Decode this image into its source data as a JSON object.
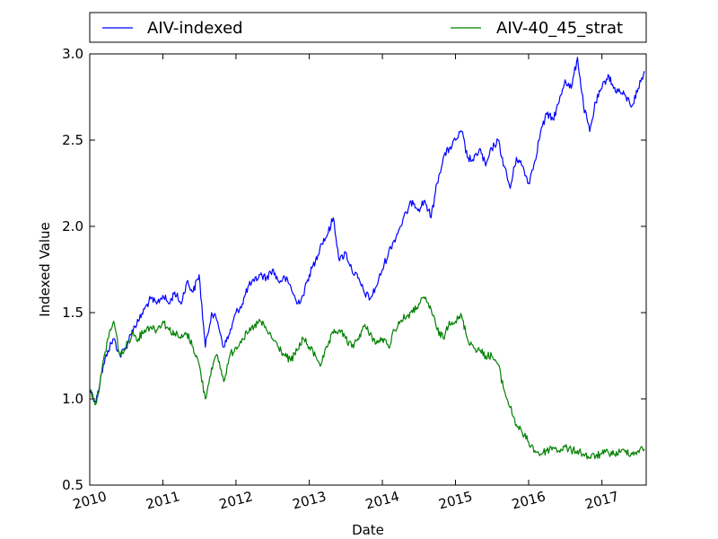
{
  "chart_data": {
    "type": "line",
    "title": "",
    "xlabel": "Date",
    "ylabel": "Indexed Value",
    "xlim": [
      "2010-01-01",
      "2017-08-10"
    ],
    "ylim": [
      0.5,
      3.0
    ],
    "yticks": [
      "0.5",
      "1.0",
      "1.5",
      "2.0",
      "2.5",
      "3.0"
    ],
    "xticks": [
      "2010",
      "2011",
      "2012",
      "2013",
      "2014",
      "2015",
      "2016",
      "2017"
    ],
    "grid": false,
    "legend": "top",
    "series": [
      {
        "name": "AIV-indexed",
        "color": "#0000ff",
        "points": [
          [
            "2010-01-04",
            1.05
          ],
          [
            "2010-02-01",
            0.98
          ],
          [
            "2010-03-01",
            1.15
          ],
          [
            "2010-04-01",
            1.28
          ],
          [
            "2010-05-01",
            1.35
          ],
          [
            "2010-06-01",
            1.25
          ],
          [
            "2010-07-01",
            1.3
          ],
          [
            "2010-08-01",
            1.4
          ],
          [
            "2010-09-01",
            1.45
          ],
          [
            "2010-10-01",
            1.52
          ],
          [
            "2010-11-01",
            1.58
          ],
          [
            "2010-12-01",
            1.55
          ],
          [
            "2011-01-01",
            1.6
          ],
          [
            "2011-02-01",
            1.55
          ],
          [
            "2011-03-01",
            1.62
          ],
          [
            "2011-04-01",
            1.55
          ],
          [
            "2011-05-01",
            1.68
          ],
          [
            "2011-06-01",
            1.62
          ],
          [
            "2011-07-01",
            1.72
          ],
          [
            "2011-08-01",
            1.3
          ],
          [
            "2011-09-01",
            1.5
          ],
          [
            "2011-10-01",
            1.45
          ],
          [
            "2011-11-01",
            1.3
          ],
          [
            "2011-12-01",
            1.38
          ],
          [
            "2012-01-01",
            1.5
          ],
          [
            "2012-02-01",
            1.55
          ],
          [
            "2012-03-01",
            1.65
          ],
          [
            "2012-04-01",
            1.68
          ],
          [
            "2012-05-01",
            1.72
          ],
          [
            "2012-06-01",
            1.7
          ],
          [
            "2012-07-01",
            1.75
          ],
          [
            "2012-08-01",
            1.68
          ],
          [
            "2012-09-01",
            1.7
          ],
          [
            "2012-10-01",
            1.65
          ],
          [
            "2012-11-01",
            1.55
          ],
          [
            "2012-12-01",
            1.6
          ],
          [
            "2013-01-01",
            1.72
          ],
          [
            "2013-02-01",
            1.8
          ],
          [
            "2013-03-01",
            1.9
          ],
          [
            "2013-04-01",
            1.95
          ],
          [
            "2013-05-01",
            2.05
          ],
          [
            "2013-06-01",
            1.8
          ],
          [
            "2013-07-01",
            1.85
          ],
          [
            "2013-08-01",
            1.75
          ],
          [
            "2013-09-01",
            1.7
          ],
          [
            "2013-10-01",
            1.62
          ],
          [
            "2013-11-01",
            1.58
          ],
          [
            "2013-12-01",
            1.65
          ],
          [
            "2014-01-01",
            1.75
          ],
          [
            "2014-02-01",
            1.85
          ],
          [
            "2014-03-01",
            1.92
          ],
          [
            "2014-04-01",
            2.0
          ],
          [
            "2014-05-01",
            2.08
          ],
          [
            "2014-06-01",
            2.15
          ],
          [
            "2014-07-01",
            2.1
          ],
          [
            "2014-08-01",
            2.15
          ],
          [
            "2014-09-01",
            2.05
          ],
          [
            "2014-10-01",
            2.25
          ],
          [
            "2014-11-01",
            2.4
          ],
          [
            "2014-12-01",
            2.45
          ],
          [
            "2015-01-01",
            2.5
          ],
          [
            "2015-02-01",
            2.55
          ],
          [
            "2015-03-01",
            2.4
          ],
          [
            "2015-04-01",
            2.38
          ],
          [
            "2015-05-01",
            2.45
          ],
          [
            "2015-06-01",
            2.35
          ],
          [
            "2015-07-01",
            2.45
          ],
          [
            "2015-08-01",
            2.5
          ],
          [
            "2015-09-01",
            2.35
          ],
          [
            "2015-10-01",
            2.22
          ],
          [
            "2015-11-01",
            2.4
          ],
          [
            "2015-12-01",
            2.35
          ],
          [
            "2016-01-01",
            2.25
          ],
          [
            "2016-02-01",
            2.38
          ],
          [
            "2016-03-01",
            2.55
          ],
          [
            "2016-04-01",
            2.65
          ],
          [
            "2016-05-01",
            2.62
          ],
          [
            "2016-06-01",
            2.72
          ],
          [
            "2016-07-01",
            2.85
          ],
          [
            "2016-08-01",
            2.8
          ],
          [
            "2016-09-01",
            2.98
          ],
          [
            "2016-10-01",
            2.7
          ],
          [
            "2016-11-01",
            2.55
          ],
          [
            "2016-12-01",
            2.72
          ],
          [
            "2017-01-01",
            2.8
          ],
          [
            "2017-02-01",
            2.88
          ],
          [
            "2017-03-01",
            2.8
          ],
          [
            "2017-04-01",
            2.78
          ],
          [
            "2017-05-01",
            2.75
          ],
          [
            "2017-06-01",
            2.7
          ],
          [
            "2017-07-01",
            2.8
          ],
          [
            "2017-08-01",
            2.9
          ]
        ]
      },
      {
        "name": "AIV-40_45_strat",
        "color": "#008000",
        "points": [
          [
            "2010-01-04",
            1.05
          ],
          [
            "2010-02-01",
            0.97
          ],
          [
            "2010-03-01",
            1.15
          ],
          [
            "2010-04-01",
            1.35
          ],
          [
            "2010-05-01",
            1.45
          ],
          [
            "2010-06-01",
            1.25
          ],
          [
            "2010-07-01",
            1.3
          ],
          [
            "2010-08-01",
            1.38
          ],
          [
            "2010-09-01",
            1.35
          ],
          [
            "2010-10-01",
            1.4
          ],
          [
            "2010-11-01",
            1.42
          ],
          [
            "2010-12-01",
            1.4
          ],
          [
            "2011-01-01",
            1.45
          ],
          [
            "2011-02-01",
            1.4
          ],
          [
            "2011-03-01",
            1.38
          ],
          [
            "2011-04-01",
            1.35
          ],
          [
            "2011-05-01",
            1.38
          ],
          [
            "2011-06-01",
            1.3
          ],
          [
            "2011-07-01",
            1.2
          ],
          [
            "2011-08-01",
            1.0
          ],
          [
            "2011-09-01",
            1.18
          ],
          [
            "2011-10-01",
            1.25
          ],
          [
            "2011-11-01",
            1.1
          ],
          [
            "2011-12-01",
            1.25
          ],
          [
            "2012-01-01",
            1.3
          ],
          [
            "2012-02-01",
            1.35
          ],
          [
            "2012-03-01",
            1.38
          ],
          [
            "2012-04-01",
            1.42
          ],
          [
            "2012-05-01",
            1.45
          ],
          [
            "2012-06-01",
            1.4
          ],
          [
            "2012-07-01",
            1.35
          ],
          [
            "2012-08-01",
            1.3
          ],
          [
            "2012-09-01",
            1.25
          ],
          [
            "2012-10-01",
            1.22
          ],
          [
            "2012-11-01",
            1.28
          ],
          [
            "2012-12-01",
            1.35
          ],
          [
            "2013-01-01",
            1.3
          ],
          [
            "2013-02-01",
            1.25
          ],
          [
            "2013-03-01",
            1.2
          ],
          [
            "2013-04-01",
            1.3
          ],
          [
            "2013-05-01",
            1.38
          ],
          [
            "2013-06-01",
            1.4
          ],
          [
            "2013-07-01",
            1.35
          ],
          [
            "2013-08-01",
            1.3
          ],
          [
            "2013-09-01",
            1.35
          ],
          [
            "2013-10-01",
            1.42
          ],
          [
            "2013-11-01",
            1.38
          ],
          [
            "2013-12-01",
            1.32
          ],
          [
            "2014-01-01",
            1.35
          ],
          [
            "2014-02-01",
            1.3
          ],
          [
            "2014-03-01",
            1.4
          ],
          [
            "2014-04-01",
            1.45
          ],
          [
            "2014-05-01",
            1.48
          ],
          [
            "2014-06-01",
            1.5
          ],
          [
            "2014-07-01",
            1.55
          ],
          [
            "2014-08-01",
            1.58
          ],
          [
            "2014-09-01",
            1.52
          ],
          [
            "2014-10-01",
            1.4
          ],
          [
            "2014-11-01",
            1.35
          ],
          [
            "2014-12-01",
            1.45
          ],
          [
            "2015-01-01",
            1.45
          ],
          [
            "2015-02-01",
            1.48
          ],
          [
            "2015-03-01",
            1.35
          ],
          [
            "2015-04-01",
            1.3
          ],
          [
            "2015-05-01",
            1.28
          ],
          [
            "2015-06-01",
            1.25
          ],
          [
            "2015-07-01",
            1.25
          ],
          [
            "2015-08-01",
            1.2
          ],
          [
            "2015-09-01",
            1.05
          ],
          [
            "2015-10-01",
            0.95
          ],
          [
            "2015-11-01",
            0.85
          ],
          [
            "2015-12-01",
            0.8
          ],
          [
            "2016-01-01",
            0.75
          ],
          [
            "2016-02-01",
            0.7
          ],
          [
            "2016-03-01",
            0.68
          ],
          [
            "2016-04-01",
            0.7
          ],
          [
            "2016-05-01",
            0.72
          ],
          [
            "2016-06-01",
            0.7
          ],
          [
            "2016-07-01",
            0.72
          ],
          [
            "2016-08-01",
            0.7
          ],
          [
            "2016-09-01",
            0.7
          ],
          [
            "2016-10-01",
            0.68
          ],
          [
            "2016-11-01",
            0.66
          ],
          [
            "2016-12-01",
            0.67
          ],
          [
            "2017-01-01",
            0.68
          ],
          [
            "2017-02-01",
            0.69
          ],
          [
            "2017-03-01",
            0.68
          ],
          [
            "2017-04-01",
            0.69
          ],
          [
            "2017-05-01",
            0.7
          ],
          [
            "2017-06-01",
            0.68
          ],
          [
            "2017-07-01",
            0.7
          ],
          [
            "2017-08-01",
            0.71
          ]
        ]
      }
    ]
  }
}
